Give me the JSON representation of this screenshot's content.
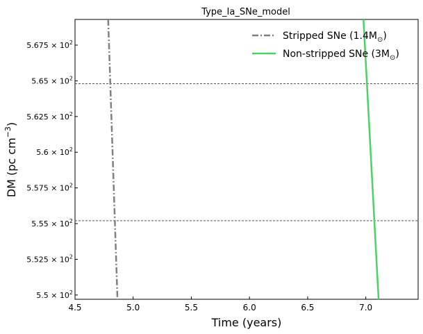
{
  "chart_data": {
    "type": "line",
    "title": "Type_Ia_SNe_model",
    "xlabel": "Time (years)",
    "ylabel": "DM (pc cm",
    "ylabel_exponent": "−3",
    "ylabel_close": ")",
    "xlim": [
      4.5,
      7.45
    ],
    "ylim": [
      549.7,
      569.3
    ],
    "x_ticks": [
      4.5,
      5.0,
      5.5,
      6.0,
      6.5,
      7.0
    ],
    "x_tick_labels": [
      "4.5",
      "5.0",
      "5.5",
      "6.0",
      "6.5",
      "7.0"
    ],
    "y_ticks": [
      {
        "value": 550.0,
        "mantissa": "5.5",
        "exp": "2"
      },
      {
        "value": 552.5,
        "mantissa": "5.525",
        "exp": "2"
      },
      {
        "value": 555.0,
        "mantissa": "5.55",
        "exp": "2"
      },
      {
        "value": 557.5,
        "mantissa": "5.575",
        "exp": "2"
      },
      {
        "value": 560.0,
        "mantissa": "5.6",
        "exp": "2"
      },
      {
        "value": 562.5,
        "mantissa": "5.625",
        "exp": "2"
      },
      {
        "value": 565.0,
        "mantissa": "5.65",
        "exp": "2"
      },
      {
        "value": 567.5,
        "mantissa": "5.675",
        "exp": "2"
      }
    ],
    "times_sign": "×",
    "base": "10",
    "hlines": [
      555.2,
      564.8
    ],
    "hline_color": "#555555",
    "series": [
      {
        "name": "Stripped SNe (1.4M",
        "name_sub": "⊙",
        "name_close": ")",
        "color": "#808080",
        "style": "dashdot",
        "points": [
          [
            4.785,
            569.3
          ],
          [
            4.865,
            549.7
          ]
        ]
      },
      {
        "name": "Non-stripped SNe (3M",
        "name_sub": "⊙",
        "name_close": ")",
        "color": "#4cd164",
        "style": "solid",
        "points": [
          [
            6.98,
            569.3
          ],
          [
            7.11,
            549.7
          ]
        ]
      }
    ],
    "legend_position": "top-right",
    "grid": false
  }
}
